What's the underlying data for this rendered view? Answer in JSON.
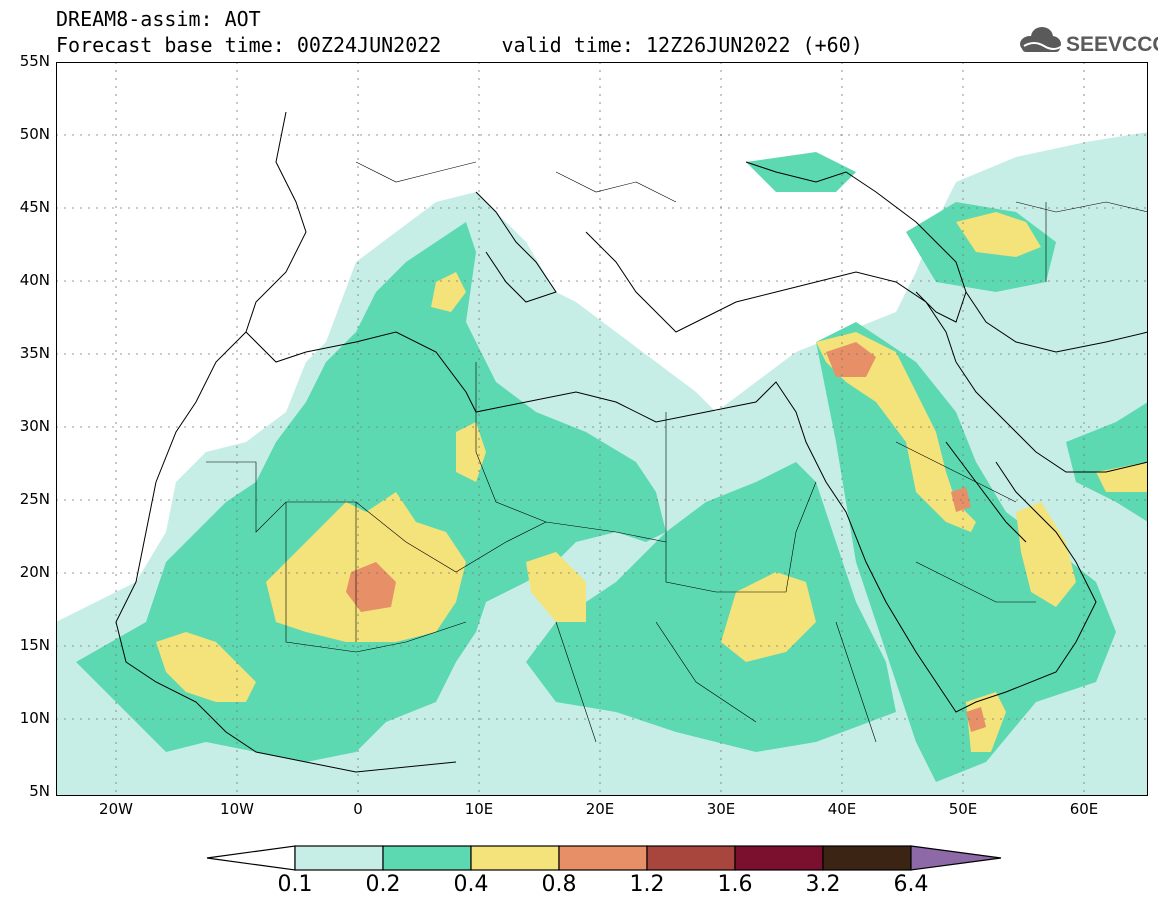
{
  "header": {
    "line1": "DREAM8-assim: AOT",
    "line2": "Forecast base time: 00Z24JUN2022     valid time: 12Z26JUN2022 (+60)",
    "logo_text": "SEEVCCC"
  },
  "map": {
    "lat_labels": [
      "55N",
      "50N",
      "45N",
      "40N",
      "35N",
      "30N",
      "25N",
      "20N",
      "15N",
      "10N",
      "5N"
    ],
    "lon_labels": [
      "20W",
      "10W",
      "0",
      "10E",
      "20E",
      "30E",
      "40E",
      "50E",
      "60E"
    ],
    "colors": {
      "c01": "#c6eee6",
      "c02": "#5cd9b0",
      "c04": "#f4e27a",
      "c08": "#e78f66",
      "c12": "#a8453c",
      "c16": "#7a0f2e",
      "c32": "#3b2414",
      "c64": "#8d69a8"
    }
  },
  "colorbar": {
    "labels": [
      "0.1",
      "0.2",
      "0.4",
      "0.8",
      "1.2",
      "1.6",
      "3.2",
      "6.4"
    ]
  }
}
